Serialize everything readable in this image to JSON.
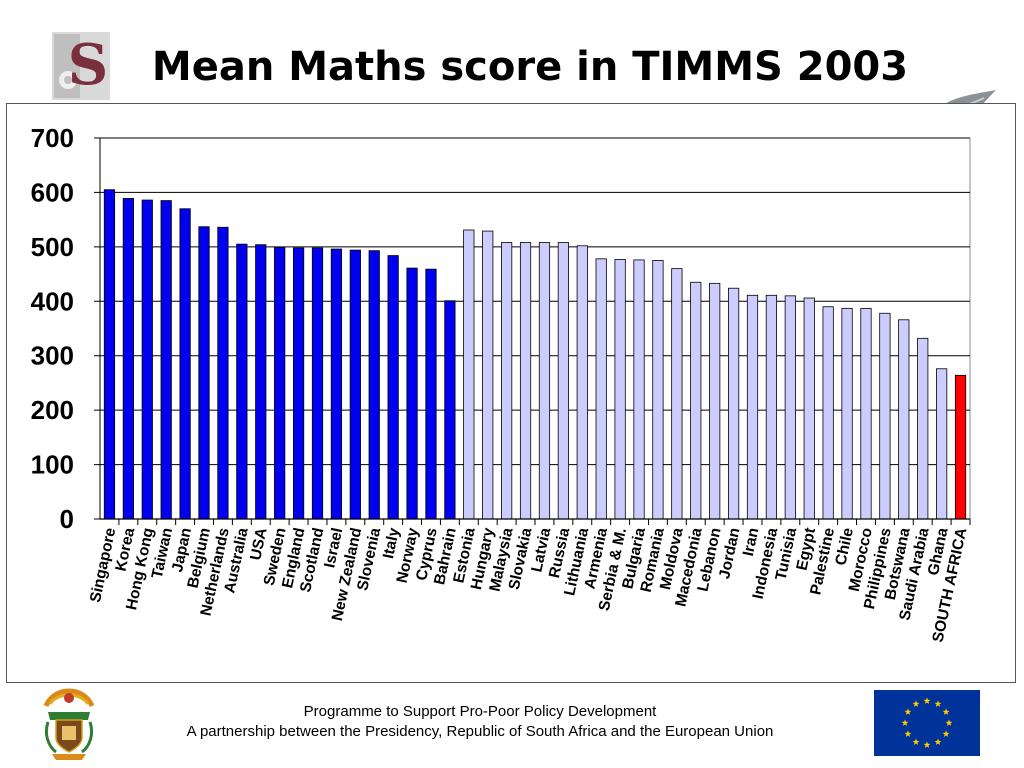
{
  "page": {
    "title": "Mean Maths score in TIMMS 2003",
    "footer_line1": "Programme to Support Pro-Poor Policy Development",
    "footer_line2": "A partnership between the Presidency, Republic of South Africa and the European Union",
    "logo_letter": "S"
  },
  "colors": {
    "high": "#0000ee",
    "low": "#ccccff",
    "highlight": "#ff0000",
    "grid": "#000000",
    "eu_blue": "#003399",
    "eu_star": "#ffcc00",
    "logo_maroon": "#7a2f3c"
  },
  "icons": {
    "top_left": "university-s-logo-icon",
    "top_right": "fish-icon",
    "bottom_left": "coat-of-arms-icon",
    "bottom_right": "eu-flag-icon"
  },
  "chart_data": {
    "type": "bar",
    "title": "",
    "xlabel": "",
    "ylabel": "",
    "ylim": [
      0,
      700
    ],
    "yticks": [
      0,
      100,
      200,
      300,
      400,
      500,
      600,
      700
    ],
    "grid": true,
    "legend": "none",
    "categories": [
      "Singapore",
      "Korea",
      "Hong Kong",
      "Taiwan",
      "Japan",
      "Belgium",
      "Netherlands",
      "Australia",
      "USA",
      "Sweden",
      "England",
      "Scotland",
      "Israel",
      "New Zealand",
      "Slovenia",
      "Italy",
      "Norway",
      "Cyprus",
      "Bahrain",
      "Estonia",
      "Hungary",
      "Malaysia",
      "Slovakia",
      "Latvia",
      "Russia",
      "Lithuania",
      "Armenia",
      "Serbia & M.",
      "Bulgaria",
      "Romania",
      "Moldova",
      "Macedonia",
      "Lebanon",
      "Jordan",
      "Iran",
      "Indonesia",
      "Tunisia",
      "Egypt",
      "Palestine",
      "Chile",
      "Morocco",
      "Philippines",
      "Botswana",
      "Saudi Arabia",
      "Ghana",
      "SOUTH AFRICA"
    ],
    "values": [
      605,
      589,
      586,
      585,
      570,
      537,
      536,
      505,
      504,
      499,
      498,
      498,
      496,
      494,
      493,
      484,
      461,
      459,
      401,
      531,
      529,
      508,
      508,
      508,
      508,
      502,
      478,
      477,
      476,
      475,
      460,
      435,
      433,
      424,
      411,
      411,
      410,
      406,
      390,
      387,
      387,
      378,
      366,
      332,
      276,
      264
    ],
    "groups": [
      "high",
      "high",
      "high",
      "high",
      "high",
      "high",
      "high",
      "high",
      "high",
      "high",
      "high",
      "high",
      "high",
      "high",
      "high",
      "high",
      "high",
      "high",
      "high",
      "low",
      "low",
      "low",
      "low",
      "low",
      "low",
      "low",
      "low",
      "low",
      "low",
      "low",
      "low",
      "low",
      "low",
      "low",
      "low",
      "low",
      "low",
      "low",
      "low",
      "low",
      "low",
      "low",
      "low",
      "low",
      "low",
      "highlight"
    ]
  }
}
